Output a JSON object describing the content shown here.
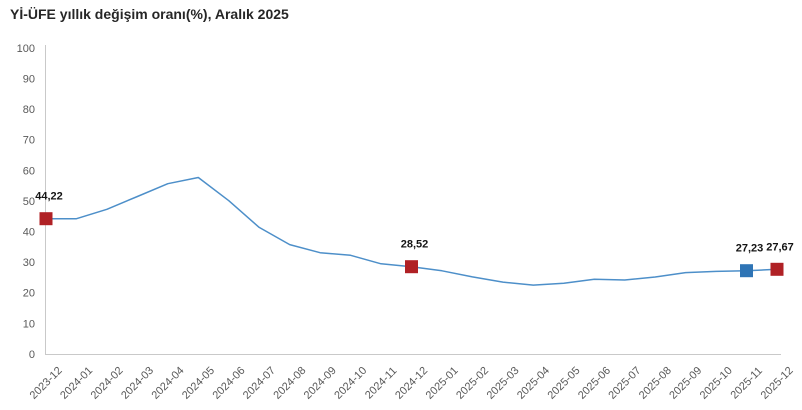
{
  "title": "Yİ-ÜFE yıllık değişim oranı(%), Aralık 2025",
  "colors": {
    "line": "#4d8fc9",
    "marker_red": "#b02125",
    "marker_blue": "#2e74b5",
    "axis": "#c9c9c9",
    "tick_text": "#595959",
    "title_text": "#262626",
    "background": "#ffffff"
  },
  "chart_data": {
    "type": "line",
    "title": "Yİ-ÜFE yıllık değişim oranı(%), Aralık 2025",
    "xlabel": "",
    "ylabel": "",
    "ylim": [
      0,
      100
    ],
    "y_ticks": [
      0,
      10,
      20,
      30,
      40,
      50,
      60,
      70,
      80,
      90,
      100
    ],
    "grid": false,
    "legend": false,
    "x": [
      "2023-12",
      "2024-01",
      "2024-02",
      "2024-03",
      "2024-04",
      "2024-05",
      "2024-06",
      "2024-07",
      "2024-08",
      "2024-09",
      "2024-10",
      "2024-11",
      "2024-12",
      "2025-01",
      "2025-02",
      "2025-03",
      "2025-04",
      "2025-05",
      "2025-06",
      "2025-07",
      "2025-08",
      "2025-09",
      "2025-10",
      "2025-11",
      "2025-12"
    ],
    "values": [
      44.22,
      44.2,
      47.29,
      51.47,
      55.66,
      57.68,
      50.09,
      41.37,
      35.75,
      33.09,
      32.24,
      29.47,
      28.52,
      27.2,
      25.21,
      23.5,
      22.5,
      23.13,
      24.45,
      24.19,
      25.16,
      26.59,
      27.0,
      27.23,
      27.67
    ],
    "annotated_points": [
      {
        "x": "2023-12",
        "value": 44.22,
        "label": "44,22",
        "marker": "square",
        "color": "#b02125"
      },
      {
        "x": "2024-12",
        "value": 28.52,
        "label": "28,52",
        "marker": "square",
        "color": "#b02125"
      },
      {
        "x": "2025-11",
        "value": 27.23,
        "label": "27,23",
        "marker": "square",
        "color": "#2e74b5"
      },
      {
        "x": "2025-12",
        "value": 27.67,
        "label": "27,67",
        "marker": "square",
        "color": "#b02125"
      }
    ]
  }
}
